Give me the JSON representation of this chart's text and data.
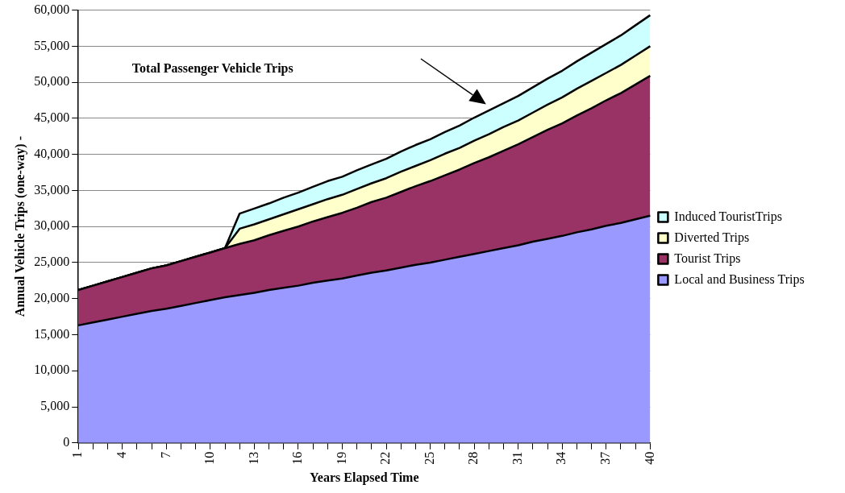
{
  "chart_data": {
    "type": "area",
    "stacked": true,
    "xlabel": "Years Elapsed Time",
    "ylabel": "Annual Vehicle Trips (one-way) -",
    "categories": [
      "1",
      null,
      null,
      "4",
      null,
      null,
      "7",
      null,
      null,
      "10",
      null,
      null,
      "13",
      null,
      null,
      "16",
      null,
      null,
      "19",
      null,
      null,
      "22",
      null,
      null,
      "25",
      null,
      null,
      "28",
      null,
      null,
      "31",
      null,
      null,
      "34",
      null,
      null,
      "37",
      null,
      null,
      "40"
    ],
    "series": [
      {
        "name": "Local and Business Trips",
        "color": "#9999ff",
        "values": [
          16300,
          16700,
          17100,
          17500,
          17900,
          18300,
          18600,
          19000,
          19400,
          19800,
          20200,
          20500,
          20800,
          21200,
          21500,
          21800,
          22200,
          22500,
          22800,
          23200,
          23600,
          23900,
          24300,
          24700,
          25000,
          25400,
          25800,
          26200,
          26600,
          27000,
          27400,
          27900,
          28300,
          28700,
          29200,
          29600,
          30100,
          30500,
          31000,
          31500
        ]
      },
      {
        "name": "Tourist Trips",
        "color": "#993366",
        "values": [
          4900,
          5100,
          5300,
          5500,
          5700,
          5900,
          6000,
          6200,
          6400,
          6600,
          6800,
          7100,
          7300,
          7600,
          7900,
          8200,
          8500,
          8800,
          9100,
          9400,
          9800,
          10100,
          10500,
          10900,
          11300,
          11700,
          12100,
          12600,
          13000,
          13500,
          14000,
          14500,
          15100,
          15600,
          16200,
          16800,
          17400,
          18000,
          18700,
          19400
        ]
      },
      {
        "name": "Diverted Trips",
        "color": "#ffffcc",
        "values": [
          0,
          0,
          0,
          0,
          0,
          0,
          0,
          0,
          0,
          0,
          0,
          2100,
          2200,
          2200,
          2300,
          2400,
          2400,
          2500,
          2500,
          2600,
          2600,
          2700,
          2800,
          2800,
          2900,
          3000,
          3000,
          3100,
          3200,
          3300,
          3300,
          3400,
          3500,
          3600,
          3700,
          3800,
          3800,
          3900,
          4000,
          4100
        ]
      },
      {
        "name": "Induced TouristTrips",
        "color": "#ccffff",
        "values": [
          0,
          0,
          0,
          0,
          0,
          0,
          0,
          0,
          0,
          0,
          0,
          2100,
          2200,
          2200,
          2300,
          2300,
          2400,
          2500,
          2500,
          2600,
          2600,
          2700,
          2800,
          2900,
          2900,
          3000,
          3100,
          3200,
          3300,
          3300,
          3400,
          3500,
          3600,
          3700,
          3800,
          3900,
          4000,
          4100,
          4200,
          4300
        ]
      }
    ],
    "ylim": [
      0,
      60000
    ],
    "yticks": [
      {
        "value": 0,
        "label": "0"
      },
      {
        "value": 5000,
        "label": "5,000"
      },
      {
        "value": 10000,
        "label": "10,000"
      },
      {
        "value": 15000,
        "label": "15,000"
      },
      {
        "value": 20000,
        "label": "20,000"
      },
      {
        "value": 25000,
        "label": "25,000"
      },
      {
        "value": 30000,
        "label": "30,000"
      },
      {
        "value": 35000,
        "label": "35,000"
      },
      {
        "value": 40000,
        "label": "40,000"
      },
      {
        "value": 45000,
        "label": "45,000"
      },
      {
        "value": 50000,
        "label": "50,000"
      },
      {
        "value": 55000,
        "label": "55,000"
      },
      {
        "value": 60000,
        "label": "60,000"
      }
    ],
    "grid": "y",
    "legend": "right",
    "marker": "none",
    "line_style": "solid",
    "annotations": [
      "Total Passenger Vehicle Trips"
    ]
  }
}
